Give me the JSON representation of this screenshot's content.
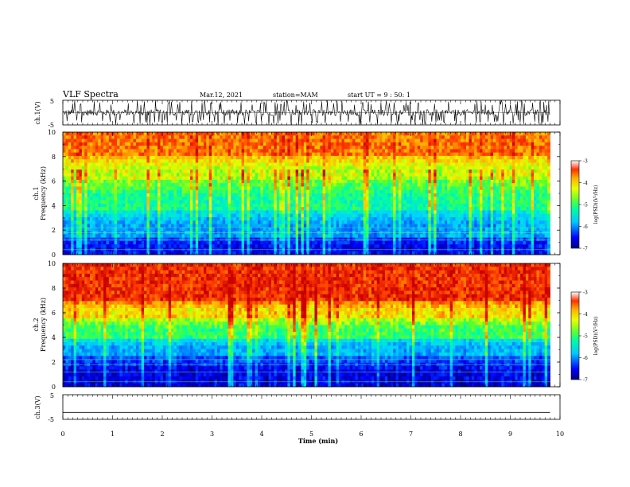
{
  "header": {
    "title": "VLF Spectra",
    "date": "Mar.12, 2021",
    "station": "station=MAM",
    "start": "start UT =  9 : 50: 1"
  },
  "chart_data": [
    {
      "type": "line",
      "panel": "ch1-waveform",
      "ylabel": "ch.1(V)",
      "ylim": [
        -5,
        5
      ],
      "y_ticks": [
        "-5",
        "5"
      ],
      "xlim": [
        0,
        10
      ],
      "description_of_data": "dense impulsive waveform"
    },
    {
      "type": "heatmap",
      "panel": "ch1-spectrogram",
      "ylabel_line1": "ch.1",
      "ylabel_line2": "Frequency (kHz)",
      "ylim": [
        0,
        10
      ],
      "y_ticks": [
        "0",
        "2",
        "4",
        "6",
        "8",
        "10"
      ],
      "xlim": [
        0,
        9.8
      ],
      "bands_kHz": [
        {
          "from": 0,
          "to": 1.5,
          "level": -6.5
        },
        {
          "from": 1.5,
          "to": 3.5,
          "level": -5.8
        },
        {
          "from": 3.5,
          "to": 6.0,
          "level": -5.0
        },
        {
          "from": 6.0,
          "to": 8.0,
          "level": -4.3
        },
        {
          "from": 8.0,
          "to": 10.0,
          "level": -3.6
        }
      ],
      "colorbar": {
        "label": "log(PSD)(V²/Hz)",
        "ticks": [
          "-3",
          "-4",
          "-5",
          "-6",
          "-7"
        ],
        "range": [
          -7,
          -3
        ]
      }
    },
    {
      "type": "heatmap",
      "panel": "ch2-spectrogram",
      "ylabel_line1": "ch.2",
      "ylabel_line2": "Frequency (kHz)",
      "ylim": [
        0,
        10
      ],
      "y_ticks": [
        "0",
        "2",
        "4",
        "6",
        "8",
        "10"
      ],
      "xlim": [
        0,
        9.8
      ],
      "bands_kHz": [
        {
          "from": 0,
          "to": 2.5,
          "level": -6.6
        },
        {
          "from": 2.5,
          "to": 4.0,
          "level": -5.7
        },
        {
          "from": 4.0,
          "to": 5.5,
          "level": -4.8
        },
        {
          "from": 5.5,
          "to": 7.0,
          "level": -4.0
        },
        {
          "from": 7.0,
          "to": 10.0,
          "level": -3.3
        }
      ],
      "colorbar": {
        "label": "log(PSD)(V²/Hz)",
        "ticks": [
          "-3",
          "-4",
          "-5",
          "-6",
          "-7"
        ],
        "range": [
          -7,
          -3
        ]
      }
    },
    {
      "type": "line",
      "panel": "ch3-waveform",
      "ylabel": "ch.3(V)",
      "ylim": [
        -5,
        5
      ],
      "y_ticks": [
        "-5",
        "5"
      ],
      "x": [
        0,
        9.8
      ],
      "y": [
        -2.2,
        -2.2
      ]
    }
  ],
  "xaxis": {
    "label": "Time (min)",
    "ticks": [
      "0",
      "1",
      "2",
      "3",
      "4",
      "5",
      "6",
      "7",
      "8",
      "9",
      "10"
    ],
    "range": [
      0,
      10
    ]
  },
  "colors": {
    "colormap": [
      "#00007f",
      "#0000ff",
      "#00c8ff",
      "#00ffa0",
      "#60ff30",
      "#e8ff00",
      "#ffb000",
      "#ff3000",
      "#c80000"
    ]
  }
}
